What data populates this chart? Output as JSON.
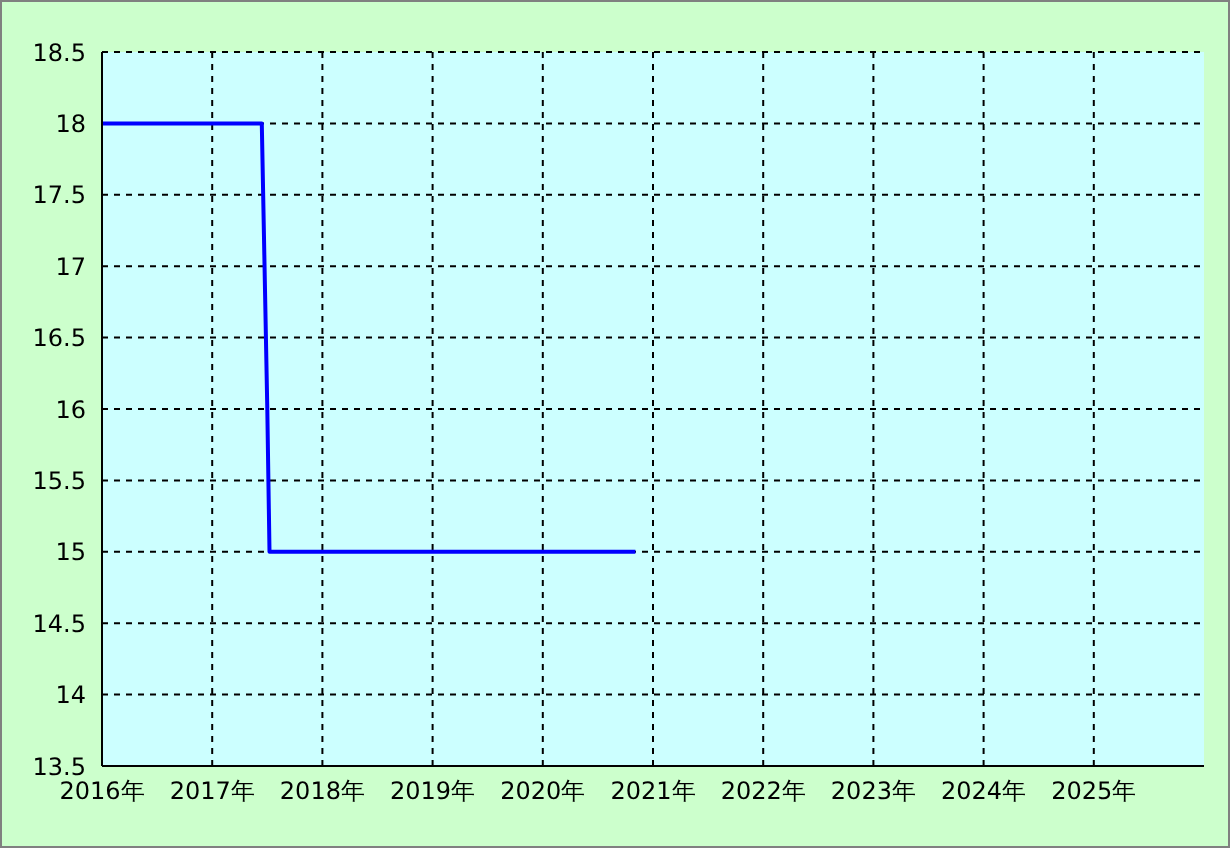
{
  "chart_data": {
    "type": "line",
    "xlim": [
      2016,
      2026
    ],
    "ylim": [
      13.5,
      18.5
    ],
    "xticks": [
      {
        "value": 2016,
        "label": "2016年"
      },
      {
        "value": 2017,
        "label": "2017年"
      },
      {
        "value": 2018,
        "label": "2018年"
      },
      {
        "value": 2019,
        "label": "2019年"
      },
      {
        "value": 2020,
        "label": "2020年"
      },
      {
        "value": 2021,
        "label": "2021年"
      },
      {
        "value": 2022,
        "label": "2022年"
      },
      {
        "value": 2023,
        "label": "2023年"
      },
      {
        "value": 2024,
        "label": "2024年"
      },
      {
        "value": 2025,
        "label": "2025年"
      }
    ],
    "yticks": [
      13.5,
      14,
      14.5,
      15,
      15.5,
      16,
      16.5,
      17,
      17.5,
      18,
      18.5
    ],
    "grid": true,
    "marker": "none",
    "line_style": "solid",
    "legend": false,
    "series": [
      {
        "color": "#0000ff",
        "x": [
          2016,
          2017.45,
          2017.47,
          2017.5,
          2017.52,
          2020.84
        ],
        "values": [
          18,
          18,
          17.2,
          16,
          15,
          15
        ]
      }
    ]
  }
}
